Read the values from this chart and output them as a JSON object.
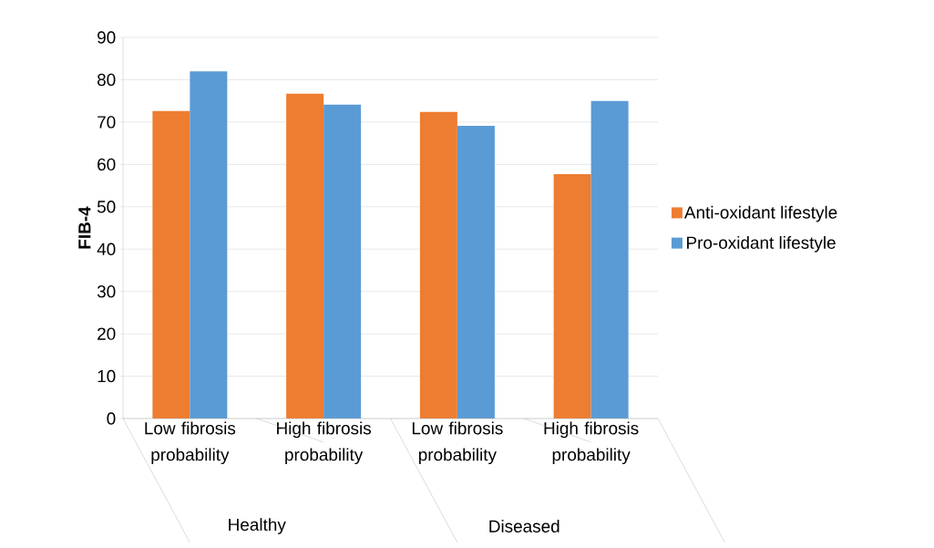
{
  "chart_data": {
    "type": "bar",
    "ylabel": "FIB-4",
    "categories": [
      "Low fibrosis probability",
      "High fibrosis probability",
      "Low fibrosis probability",
      "High fibrosis probability"
    ],
    "series": [
      {
        "name": "Anti-oxidant lifestyle",
        "color": "#ed7d31",
        "values": [
          72.6,
          76.7,
          72.4,
          57.7
        ]
      },
      {
        "name": "Pro-oxidant lifestyle",
        "color": "#5b9bd5",
        "values": [
          82.0,
          74.1,
          69.1,
          75.0
        ]
      }
    ],
    "annotations": [
      "Healthy",
      "Diseased"
    ],
    "ylim": [
      0,
      90
    ],
    "yticks": [
      0,
      10,
      20,
      30,
      40,
      50,
      60,
      70,
      80,
      90
    ],
    "grid": "y",
    "legend": "right"
  }
}
